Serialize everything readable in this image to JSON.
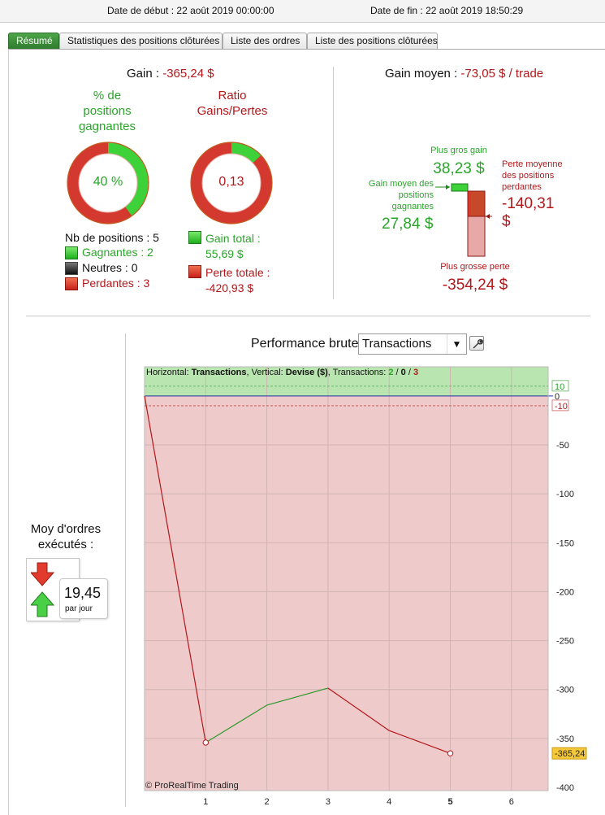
{
  "header": {
    "start_label": "Date de début :",
    "start_value": "22 août 2019 00:00:00",
    "end_label": "Date de fin :",
    "end_value": "22 août 2019 18:50:29"
  },
  "tabs": [
    {
      "label": "Résumé",
      "active": true
    },
    {
      "label": "Statistiques des positions clôturées",
      "active": false
    },
    {
      "label": "Liste des ordres",
      "active": false
    },
    {
      "label": "Liste des positions clôturées",
      "active": false
    }
  ],
  "summary": {
    "gain_label": "Gain :",
    "gain_value": "-365,24 $",
    "win_pct_title": [
      "% de",
      "positions",
      "gagnantes"
    ],
    "win_pct_value": "40 %",
    "win_pct_fraction": 0.4,
    "ratio_title": [
      "Ratio",
      "Gains/Pertes"
    ],
    "ratio_value": "0,13",
    "ratio_fraction": 0.13,
    "nb_positions": "Nb de positions : 5",
    "winners": "Gagnantes : 2",
    "neutral": "Neutres : 0",
    "losers": "Perdantes : 3",
    "gain_total_label": "Gain total :",
    "gain_total_value": "55,69 $",
    "loss_total_label": "Perte totale :",
    "loss_total_value": "-420,93 $"
  },
  "avg": {
    "title_label": "Gain moyen :",
    "title_value": "-73,05 $ / trade",
    "biggest_gain_label": "Plus gros gain",
    "biggest_gain_value": "38,23 $",
    "avg_win_label": [
      "Gain moyen des",
      "positions",
      "gagnantes"
    ],
    "avg_win_value": "27,84 $",
    "avg_loss_label": [
      "Perte moyenne",
      "des positions",
      "perdantes"
    ],
    "avg_loss_value": [
      "-140,31",
      "$"
    ],
    "biggest_loss_label": "Plus grosse perte",
    "biggest_loss_value": "-354,24 $"
  },
  "orders": {
    "label": [
      "Moy d'ordres",
      "exécutés :"
    ],
    "value": "19,45",
    "unit": "par jour"
  },
  "performance": {
    "title": "Performance brute",
    "select_value": "Transactions",
    "legend": {
      "h_label": "Horizontal: ",
      "h_value": "Transactions",
      "v_label": ", Vertical: ",
      "v_value": "Devise ($)",
      "t_label": ", Transactions: ",
      "t_win": "2",
      "t_sep1": " / ",
      "t_neutral": "0",
      "t_sep2": " / ",
      "t_loss": "3"
    },
    "watermark": "© ProRealTime Trading",
    "last_value": "-365,24"
  },
  "colors": {
    "green": "#2aa52a",
    "red": "#b3171a",
    "positive_zone": "#b9e6b0",
    "negative_zone": "#efcaca"
  },
  "chart_data": {
    "type": "line",
    "title": "Performance brute",
    "xlabel": "Transactions",
    "ylabel": "Devise ($)",
    "x": [
      0,
      1,
      2,
      3,
      4,
      5
    ],
    "y": [
      0,
      -354.24,
      -316.01,
      -298.54,
      -342,
      -365.24
    ],
    "xticks": [
      "1",
      "2",
      "3",
      "4",
      "5",
      "6"
    ],
    "yticks": [
      "10",
      "0",
      "-10",
      "-50",
      "-100",
      "-150",
      "-200",
      "-250",
      "-300",
      "-350",
      "-400"
    ],
    "xlim": [
      0,
      6.6
    ],
    "ylim": [
      -400,
      14
    ],
    "grid": true
  }
}
